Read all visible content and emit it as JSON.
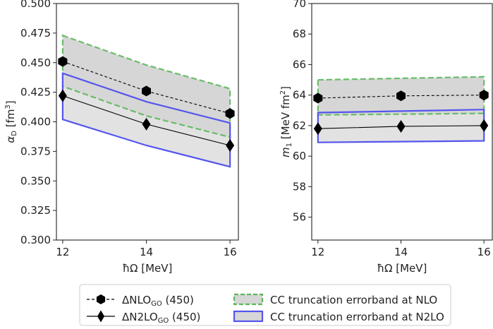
{
  "chart_data": [
    {
      "type": "line",
      "x": [
        12,
        14,
        16
      ],
      "xlim": [
        11.85,
        16.2
      ],
      "ylim": [
        0.3,
        0.5
      ],
      "xticks": [
        "12",
        "14",
        "16"
      ],
      "yticks": [
        "0.300",
        "0.325",
        "0.350",
        "0.375",
        "0.400",
        "0.425",
        "0.450",
        "0.475",
        "0.500"
      ],
      "ytick_values": [
        0.3,
        0.325,
        0.35,
        0.375,
        0.4,
        0.425,
        0.45,
        0.475,
        0.5
      ],
      "xlabel": "ħΩ [MeV]",
      "ylabel_main": "α",
      "ylabel_sub": "D",
      "ylabel_unit": " [fm",
      "ylabel_sup": "3",
      "ylabel_close": "]",
      "series": [
        {
          "name": "ΔNLO_GO (450)",
          "values": [
            0.451,
            0.426,
            0.407
          ],
          "marker": "hexagon",
          "line": "dashed"
        },
        {
          "name": "ΔN2LO_GO (450)",
          "values": [
            0.422,
            0.398,
            0.38
          ],
          "marker": "diamond",
          "line": "solid"
        }
      ],
      "bands": [
        {
          "name": "CC truncation errorband at NLO",
          "upper": [
            0.473,
            0.448,
            0.428
          ],
          "lower": [
            0.43,
            0.405,
            0.387
          ],
          "color": "#5cb85c"
        },
        {
          "name": "CC truncation errorband at N2LO",
          "upper": [
            0.441,
            0.417,
            0.399
          ],
          "lower": [
            0.402,
            0.38,
            0.362
          ],
          "color": "#5555ee"
        }
      ]
    },
    {
      "type": "line",
      "x": [
        12,
        14,
        16
      ],
      "xlim": [
        11.85,
        16.2
      ],
      "ylim": [
        54.5,
        70
      ],
      "xticks": [
        "12",
        "14",
        "16"
      ],
      "yticks": [
        "56",
        "58",
        "60",
        "62",
        "64",
        "66",
        "68",
        "70"
      ],
      "ytick_values": [
        56,
        58,
        60,
        62,
        64,
        66,
        68,
        70
      ],
      "xlabel": "ħΩ [MeV]",
      "ylabel_main": "m",
      "ylabel_sub": "1",
      "ylabel_unit": " [MeV fm",
      "ylabel_sup": "2",
      "ylabel_close": "]",
      "series": [
        {
          "name": "ΔNLO_GO (450)",
          "values": [
            63.8,
            63.95,
            64.0
          ],
          "marker": "hexagon",
          "line": "dashed"
        },
        {
          "name": "ΔN2LO_GO (450)",
          "values": [
            61.8,
            61.95,
            62.0
          ],
          "marker": "diamond",
          "line": "solid"
        }
      ],
      "bands": [
        {
          "name": "CC truncation errorband at NLO",
          "upper": [
            65.0,
            65.1,
            65.2
          ],
          "lower": [
            62.7,
            62.75,
            62.8
          ],
          "color": "#5cb85c"
        },
        {
          "name": "CC truncation errorband at N2LO",
          "upper": [
            62.85,
            62.95,
            63.05
          ],
          "lower": [
            60.9,
            60.95,
            61.0
          ],
          "color": "#5555ee"
        }
      ]
    }
  ],
  "legend": {
    "entries": [
      {
        "pre": "ΔNLO",
        "sub": "GO",
        "post": " (450)"
      },
      {
        "pre": "ΔN2LO",
        "sub": "GO",
        "post": " (450)"
      },
      {
        "text": "CC truncation errorband at NLO"
      },
      {
        "text": "CC truncation errorband at N2LO"
      }
    ]
  },
  "colors": {
    "nlo_band": "#5cb85c",
    "n2lo_band": "#5555ee",
    "band_fill": "#d6d6d6",
    "marker": "#000000"
  }
}
